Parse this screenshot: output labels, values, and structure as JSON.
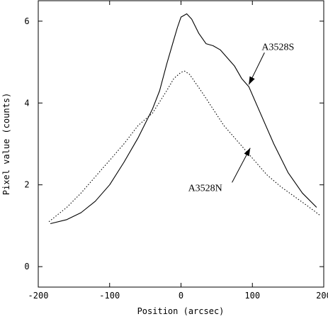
{
  "chart_data": {
    "type": "line",
    "xlabel": "Position (arcsec)",
    "ylabel": "Pixel value (counts)",
    "xlim": [
      -200,
      200
    ],
    "ylim": [
      -0.5,
      6.5
    ],
    "xticks": [
      -200,
      -100,
      0,
      100,
      200
    ],
    "xtick_labels": [
      "-200",
      "-100",
      "0",
      "100",
      "200"
    ],
    "yticks": [
      0,
      2,
      4,
      6
    ],
    "ytick_labels": [
      "0",
      "2",
      "4",
      "6"
    ],
    "grid": false,
    "legend": "none",
    "series": [
      {
        "name": "A3528S",
        "style": "solid",
        "color": "#000000",
        "x": [
          -183,
          -160,
          -140,
          -120,
          -100,
          -80,
          -60,
          -40,
          -30,
          -20,
          -10,
          -5,
          0,
          8,
          15,
          25,
          35,
          45,
          55,
          65,
          75,
          85,
          95,
          110,
          130,
          150,
          170,
          190
        ],
        "y": [
          1.05,
          1.15,
          1.32,
          1.6,
          2.0,
          2.55,
          3.15,
          3.85,
          4.3,
          4.95,
          5.55,
          5.85,
          6.1,
          6.18,
          6.05,
          5.7,
          5.45,
          5.4,
          5.3,
          5.1,
          4.9,
          4.6,
          4.4,
          3.8,
          3.0,
          2.3,
          1.8,
          1.45
        ]
      },
      {
        "name": "A3528N",
        "style": "dotted",
        "color": "#000000",
        "x": [
          -185,
          -160,
          -140,
          -120,
          -100,
          -80,
          -60,
          -40,
          -20,
          -10,
          0,
          5,
          12,
          20,
          30,
          45,
          60,
          80,
          100,
          120,
          140,
          160,
          180,
          195
        ],
        "y": [
          1.1,
          1.45,
          1.8,
          2.2,
          2.6,
          3.0,
          3.45,
          3.75,
          4.3,
          4.6,
          4.75,
          4.78,
          4.7,
          4.5,
          4.25,
          3.85,
          3.45,
          3.05,
          2.65,
          2.25,
          1.95,
          1.7,
          1.45,
          1.25
        ]
      }
    ],
    "annotations": [
      {
        "text": "A3528S",
        "series": "A3528S",
        "label_x": 113,
        "label_y": 5.3,
        "arrow_to_x": 95,
        "arrow_to_y": 4.45
      },
      {
        "text": "A3528N",
        "series": "A3528N",
        "label_x": 10,
        "label_y": 1.85,
        "arrow_to_x": 97,
        "arrow_to_y": 2.9
      }
    ]
  }
}
